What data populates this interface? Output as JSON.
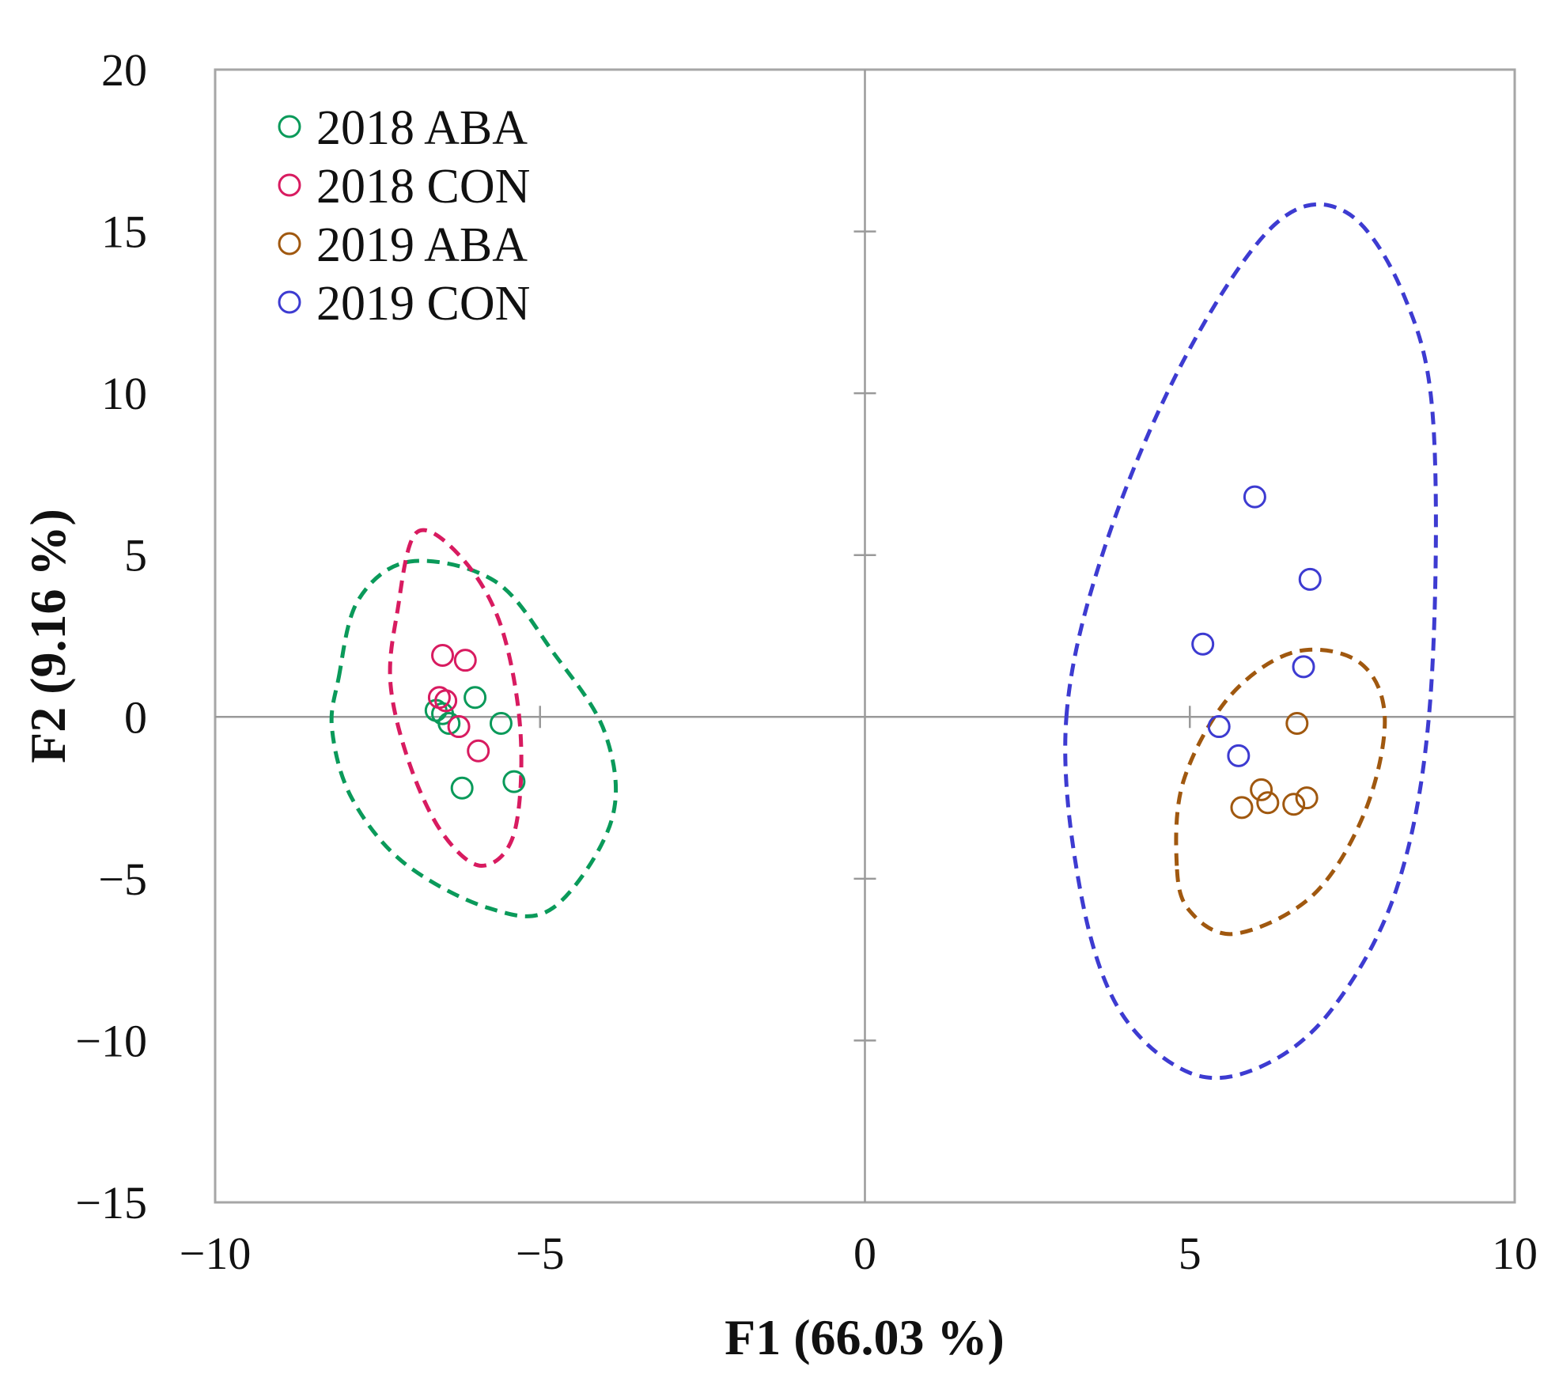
{
  "chart_data": {
    "type": "scatter",
    "title": "",
    "xlabel": "F1 (66.03 %)",
    "ylabel": "F2 (9.16 %)",
    "xlim": [
      -10,
      10
    ],
    "ylim": [
      -15,
      20
    ],
    "xticks": [
      -10,
      -5,
      0,
      5,
      10
    ],
    "yticks": [
      -15,
      -10,
      -5,
      0,
      5,
      10,
      15,
      20
    ],
    "xtick_labels": [
      "−10",
      "−5",
      "0",
      "5",
      "10"
    ],
    "ytick_labels": [
      "−15",
      "−10",
      "−5",
      "0",
      "5",
      "10",
      "15",
      "20"
    ],
    "legend_position": "top-left",
    "series": [
      {
        "name": "2018 ABA",
        "color": "#0a9a5a",
        "points": [
          [
            -6.6,
            0.2
          ],
          [
            -6.5,
            0.1
          ],
          [
            -6.4,
            -0.2
          ],
          [
            -6.0,
            0.6
          ],
          [
            -5.6,
            -0.2
          ],
          [
            -6.2,
            -2.2
          ],
          [
            -5.4,
            -2.0
          ]
        ],
        "ellipse": [
          [
            -8.1,
            1.2
          ],
          [
            -7.8,
            3.6
          ],
          [
            -7.0,
            4.8
          ],
          [
            -5.7,
            4.2
          ],
          [
            -4.8,
            2.0
          ],
          [
            -4.0,
            -0.5
          ],
          [
            -3.9,
            -3.2
          ],
          [
            -4.8,
            -5.9
          ],
          [
            -5.8,
            -5.9
          ],
          [
            -7.1,
            -4.5
          ],
          [
            -7.9,
            -2.5
          ],
          [
            -8.2,
            -0.4
          ]
        ]
      },
      {
        "name": "2018 CON",
        "color": "#d81b60",
        "points": [
          [
            -6.5,
            1.9
          ],
          [
            -6.15,
            1.75
          ],
          [
            -6.55,
            0.6
          ],
          [
            -6.45,
            0.5
          ],
          [
            -6.25,
            -0.3
          ],
          [
            -5.95,
            -1.05
          ]
        ],
        "ellipse": [
          [
            -7.2,
            3.2
          ],
          [
            -6.9,
            5.7
          ],
          [
            -6.2,
            4.9
          ],
          [
            -5.6,
            2.8
          ],
          [
            -5.3,
            -0.5
          ],
          [
            -5.4,
            -3.6
          ],
          [
            -5.9,
            -4.6
          ],
          [
            -6.5,
            -3.6
          ],
          [
            -7.0,
            -1.5
          ],
          [
            -7.3,
            1.0
          ]
        ]
      },
      {
        "name": "2019 ABA",
        "color": "#a0580f",
        "points": [
          [
            6.65,
            -0.2
          ],
          [
            6.1,
            -2.25
          ],
          [
            6.2,
            -2.65
          ],
          [
            5.8,
            -2.8
          ],
          [
            6.6,
            -2.7
          ],
          [
            6.8,
            -2.5
          ]
        ],
        "ellipse": [
          [
            4.8,
            -4.6
          ],
          [
            4.9,
            -2.0
          ],
          [
            5.6,
            0.6
          ],
          [
            6.6,
            2.0
          ],
          [
            7.6,
            1.7
          ],
          [
            8.0,
            0.0
          ],
          [
            7.7,
            -2.9
          ],
          [
            6.9,
            -5.5
          ],
          [
            5.7,
            -6.7
          ],
          [
            5.0,
            -6.0
          ]
        ]
      },
      {
        "name": "2019 CON",
        "color": "#3d3bd1",
        "points": [
          [
            6.0,
            6.8
          ],
          [
            6.85,
            4.25
          ],
          [
            5.2,
            2.25
          ],
          [
            6.75,
            1.55
          ],
          [
            5.45,
            -0.3
          ],
          [
            5.75,
            -1.2
          ]
        ],
        "ellipse": [
          [
            3.1,
            0.0
          ],
          [
            3.7,
            5.3
          ],
          [
            4.9,
            11.0
          ],
          [
            6.3,
            15.2
          ],
          [
            7.4,
            15.6
          ],
          [
            8.3,
            13.0
          ],
          [
            8.75,
            9.0
          ],
          [
            8.7,
            0.5
          ],
          [
            8.2,
            -5.2
          ],
          [
            7.2,
            -9.0
          ],
          [
            6.1,
            -10.8
          ],
          [
            5.0,
            -11.0
          ],
          [
            3.9,
            -9.0
          ],
          [
            3.3,
            -5.2
          ]
        ]
      }
    ]
  }
}
